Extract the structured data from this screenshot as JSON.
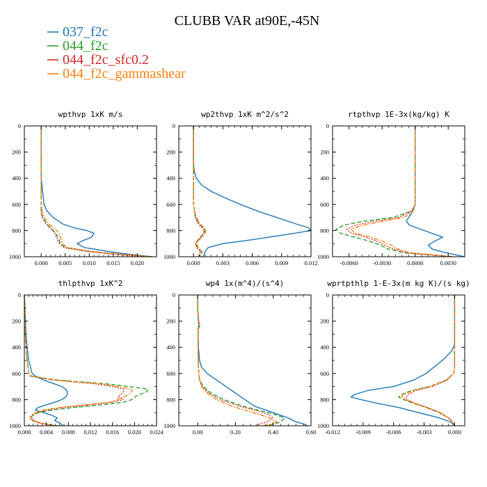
{
  "figure": {
    "title": "CLUBB VAR at90E,-45N"
  },
  "legend": {
    "placement": "top-left",
    "entries": [
      {
        "label": "037_f2c",
        "color": "#1f77b4",
        "dash": "solid"
      },
      {
        "label": "044_f2c",
        "color": "#2ca02c",
        "dash": "dashed"
      },
      {
        "label": "044_f2c_sfc0.2",
        "color": "#d62728",
        "dash": "dotted"
      },
      {
        "label": "044_f2c_gammashear",
        "color": "#ff7f0e",
        "dash": "dashdot"
      }
    ]
  },
  "chart_data": [
    {
      "type": "line",
      "title": "wpthvp  1xK m/s",
      "xlim": [
        -0.0035,
        0.024
      ],
      "ylim": [
        1000,
        0
      ],
      "xticks": [
        0.0,
        0.005,
        0.01,
        0.015,
        0.02
      ],
      "xtick_labels": [
        "0.000",
        "0.005",
        "0.010",
        "0.015",
        "0.020"
      ],
      "yticks": [
        0,
        200,
        400,
        600,
        800,
        1000
      ],
      "ytick_labels": [
        "0",
        "200",
        "400",
        "600",
        "800",
        "1000"
      ],
      "y": [
        0,
        100,
        200,
        300,
        400,
        500,
        600,
        650,
        700,
        750,
        780,
        800,
        820,
        850,
        880,
        900,
        930,
        960,
        980,
        1000
      ],
      "series": [
        {
          "name": "037_f2c",
          "values": [
            0,
            0,
            0,
            0,
            0,
            0.0003,
            0.0006,
            0.0012,
            0.0025,
            0.0045,
            0.007,
            0.0095,
            0.011,
            0.0105,
            0.0085,
            0.0075,
            0.009,
            0.014,
            0.018,
            0.023
          ]
        },
        {
          "name": "044_f2c",
          "values": [
            0,
            0,
            0,
            0,
            0,
            0,
            0,
            0,
            0.0003,
            0.0012,
            0.002,
            0.0025,
            0.003,
            0.0035,
            0.0038,
            0.004,
            0.005,
            0.01,
            0.016,
            0.023
          ]
        },
        {
          "name": "044_f2c_sfc0.2",
          "values": [
            0,
            0,
            0,
            0,
            0,
            0,
            0,
            0,
            0.0002,
            0.001,
            0.0018,
            0.0024,
            0.0028,
            0.0032,
            0.0035,
            0.0038,
            0.0048,
            0.0095,
            0.015,
            0.021
          ]
        },
        {
          "name": "044_f2c_gammashear",
          "values": [
            0,
            0,
            0,
            0,
            0,
            0,
            0,
            0.0002,
            0.0006,
            0.0016,
            0.0026,
            0.0032,
            0.0038,
            0.004,
            0.0042,
            0.0044,
            0.0055,
            0.0105,
            0.0165,
            0.023
          ]
        }
      ]
    },
    {
      "type": "line",
      "title": "wp2thvp  1xK m^2/s^2",
      "xlim": [
        -0.0015,
        0.012
      ],
      "ylim": [
        1000,
        0
      ],
      "xticks": [
        0.0,
        0.003,
        0.006,
        0.009,
        0.012
      ],
      "xtick_labels": [
        "0.000",
        "0.003",
        "0.006",
        "0.009",
        "0.012"
      ],
      "yticks": [
        0,
        200,
        400,
        600,
        800,
        1000
      ],
      "ytick_labels": [
        "0",
        "200",
        "400",
        "600",
        "800",
        "1000"
      ],
      "y": [
        0,
        100,
        200,
        300,
        350,
        400,
        450,
        500,
        550,
        600,
        650,
        700,
        750,
        780,
        800,
        830,
        870,
        900,
        930,
        960,
        1000
      ],
      "series": [
        {
          "name": "037_f2c",
          "values": [
            0,
            0,
            0,
            0,
            0.0001,
            0.0003,
            0.0008,
            0.0018,
            0.0032,
            0.0048,
            0.0065,
            0.0085,
            0.0105,
            0.0118,
            0.012,
            0.0095,
            0.006,
            0.003,
            0.0015,
            0.0012,
            0.001
          ]
        },
        {
          "name": "044_f2c",
          "values": [
            0,
            0,
            0,
            0,
            0,
            0,
            0,
            0,
            0,
            0,
            0.0001,
            0.0002,
            0.0006,
            0.001,
            0.0012,
            0.001,
            0.0005,
            0.0002,
            0.0004,
            0.0008,
            0.0006
          ]
        },
        {
          "name": "044_f2c_sfc0.2",
          "values": [
            0,
            0,
            0,
            0,
            0,
            0,
            0,
            0,
            0,
            0,
            0.0001,
            0.0002,
            0.0005,
            0.0009,
            0.0011,
            0.0009,
            0.0005,
            0.0002,
            0.0003,
            0.0007,
            0.0005
          ]
        },
        {
          "name": "044_f2c_gammashear",
          "values": [
            0,
            0,
            0,
            0,
            0,
            0,
            0,
            0,
            0,
            0,
            0.0001,
            0.0003,
            0.0007,
            0.0011,
            0.0013,
            0.0011,
            0.0006,
            0.0003,
            0.0005,
            0.0009,
            0.0007
          ]
        }
      ]
    },
    {
      "type": "line",
      "title": "rtpthvp  1E-3x(kg/kg) K",
      "xlim": [
        -0.0075,
        0.0045
      ],
      "ylim": [
        1000,
        0
      ],
      "xticks": [
        -0.006,
        -0.003,
        0.0,
        0.003
      ],
      "xtick_labels": [
        "-0.0060",
        "-0.0030",
        "0.0000",
        "0.0030"
      ],
      "yticks": [
        0,
        200,
        400,
        600,
        800,
        1000
      ],
      "ytick_labels": [
        "0",
        "200",
        "400",
        "600",
        "800",
        "1000"
      ],
      "y": [
        0,
        200,
        400,
        500,
        600,
        650,
        700,
        730,
        760,
        790,
        820,
        850,
        880,
        910,
        940,
        970,
        1000
      ],
      "series": [
        {
          "name": "037_f2c",
          "values": [
            0,
            0,
            0,
            0,
            0,
            -0.0002,
            -0.0006,
            -0.0008,
            -0.0005,
            0.0005,
            0.0015,
            0.0025,
            0.0018,
            0.0012,
            0.0015,
            0.0028,
            0.0045
          ]
        },
        {
          "name": "044_f2c",
          "values": [
            0,
            0,
            0,
            0,
            0,
            -0.0003,
            -0.002,
            -0.0048,
            -0.0065,
            -0.0072,
            -0.0068,
            -0.0055,
            -0.0042,
            -0.0032,
            -0.0025,
            -0.001,
            0.0035
          ]
        },
        {
          "name": "044_f2c_sfc0.2",
          "values": [
            0,
            0,
            0,
            0,
            0,
            -0.0003,
            -0.0015,
            -0.0038,
            -0.0055,
            -0.0062,
            -0.0058,
            -0.0045,
            -0.0035,
            -0.0028,
            -0.002,
            -0.0008,
            0.0033
          ]
        },
        {
          "name": "044_f2c_gammashear",
          "values": [
            0,
            0,
            0,
            0,
            0,
            -0.0002,
            -0.001,
            -0.003,
            -0.0048,
            -0.0058,
            -0.0055,
            -0.004,
            -0.003,
            -0.0022,
            -0.0016,
            -0.0005,
            0.0034
          ]
        }
      ]
    },
    {
      "type": "line",
      "title": "thlpthvp  1xK^2",
      "xlim": [
        0.0,
        0.024
      ],
      "ylim": [
        1000,
        0
      ],
      "xticks": [
        0.0,
        0.004,
        0.008,
        0.012,
        0.016,
        0.02,
        0.024
      ],
      "xtick_labels": [
        "0.000",
        "0.004",
        "0.008",
        "0.012",
        "0.016",
        "0.020",
        "0.024"
      ],
      "yticks": [
        0,
        200,
        400,
        600,
        800,
        1000
      ],
      "ytick_labels": [
        "0",
        "200",
        "400",
        "600",
        "800",
        "1000"
      ],
      "y": [
        0,
        100,
        200,
        300,
        400,
        500,
        600,
        620,
        650,
        680,
        700,
        720,
        740,
        760,
        780,
        800,
        820,
        840,
        860,
        880,
        900,
        920,
        940,
        960,
        980,
        1000
      ],
      "series": [
        {
          "name": "037_f2c",
          "values": [
            0,
            0.0001,
            0.0002,
            0.0003,
            0.0005,
            0.0008,
            0.0014,
            0.002,
            0.0035,
            0.0055,
            0.0068,
            0.0075,
            0.0078,
            0.0078,
            0.0075,
            0.0068,
            0.0055,
            0.004,
            0.0025,
            0.002,
            0.0035,
            0.005,
            0.006,
            0.0055,
            0.0065,
            0.007
          ]
        },
        {
          "name": "044_f2c",
          "values": [
            0,
            0.0001,
            0.0001,
            0.0002,
            0.0003,
            0.0005,
            0.0008,
            0.0012,
            0.006,
            0.015,
            0.019,
            0.0225,
            0.0222,
            0.021,
            0.02,
            0.0195,
            0.018,
            0.014,
            0.009,
            0.005,
            0.0025,
            0.0015,
            0.0012,
            0.0015,
            0.003,
            0.006
          ]
        },
        {
          "name": "044_f2c_sfc0.2",
          "values": [
            0,
            0.0001,
            0.0001,
            0.0002,
            0.0003,
            0.0005,
            0.0008,
            0.001,
            0.005,
            0.013,
            0.016,
            0.018,
            0.018,
            0.0175,
            0.017,
            0.018,
            0.016,
            0.012,
            0.007,
            0.004,
            0.0022,
            0.0014,
            0.0012,
            0.0018,
            0.003,
            0.0055
          ]
        },
        {
          "name": "044_f2c_gammashear",
          "values": [
            0,
            0.0001,
            0.0001,
            0.0002,
            0.0003,
            0.0005,
            0.0008,
            0.0011,
            0.0055,
            0.014,
            0.017,
            0.0195,
            0.0195,
            0.019,
            0.018,
            0.017,
            0.0155,
            0.011,
            0.0065,
            0.0035,
            0.002,
            0.0012,
            0.001,
            0.0014,
            0.0028,
            0.0055
          ]
        }
      ]
    },
    {
      "type": "line",
      "title": "wp4  1x(m^4)/(s^4)",
      "xlim": [
        -0.1,
        0.6
      ],
      "ylim": [
        1000,
        0
      ],
      "xticks": [
        0.0,
        0.2,
        0.4,
        0.6
      ],
      "xtick_labels": [
        "0.00",
        "0.20",
        "0.40",
        "0.60"
      ],
      "yticks": [
        0,
        200,
        400,
        600,
        800,
        1000
      ],
      "ytick_labels": [
        "0",
        "200",
        "400",
        "600",
        "800",
        "1000"
      ],
      "y": [
        0,
        100,
        200,
        230,
        260,
        300,
        400,
        500,
        550,
        600,
        650,
        700,
        750,
        800,
        850,
        880,
        910,
        940,
        970,
        990,
        1000
      ],
      "series": [
        {
          "name": "037_f2c",
          "values": [
            0,
            0,
            0.003,
            0.006,
            0.003,
            0.002,
            0.004,
            0.01,
            0.02,
            0.05,
            0.1,
            0.15,
            0.2,
            0.25,
            0.3,
            0.36,
            0.42,
            0.48,
            0.52,
            0.57,
            0.58
          ]
        },
        {
          "name": "044_f2c",
          "values": [
            0,
            0,
            0.005,
            0.012,
            0.004,
            0.002,
            0.002,
            0.003,
            0.004,
            0.006,
            0.01,
            0.03,
            0.07,
            0.14,
            0.24,
            0.32,
            0.4,
            0.46,
            0.44,
            0.4,
            0.35
          ]
        },
        {
          "name": "044_f2c_sfc0.2",
          "values": [
            0,
            0,
            0.005,
            0.013,
            0.004,
            0.002,
            0.002,
            0.003,
            0.004,
            0.006,
            0.01,
            0.025,
            0.06,
            0.12,
            0.22,
            0.3,
            0.37,
            0.4,
            0.37,
            0.32,
            0.3
          ]
        },
        {
          "name": "044_f2c_gammashear",
          "values": [
            0,
            0,
            0.005,
            0.011,
            0.004,
            0.002,
            0.002,
            0.003,
            0.004,
            0.006,
            0.01,
            0.02,
            0.05,
            0.1,
            0.18,
            0.25,
            0.32,
            0.38,
            0.42,
            0.38,
            0.36
          ]
        }
      ]
    },
    {
      "type": "line",
      "title": "wprtpthlp  1-E-3x(m kg K)/(s kg)",
      "xlim": [
        -0.012,
        0.001
      ],
      "ylim": [
        1000,
        0
      ],
      "xticks": [
        -0.012,
        -0.009,
        -0.006,
        -0.003,
        0.0
      ],
      "xtick_labels": [
        "-0.012",
        "-0.009",
        "-0.006",
        "-0.003",
        "0.000"
      ],
      "yticks": [
        0,
        200,
        400,
        600,
        800,
        1000
      ],
      "ytick_labels": [
        "0",
        "200",
        "400",
        "600",
        "800",
        "1000"
      ],
      "y": [
        0,
        100,
        200,
        300,
        380,
        430,
        500,
        550,
        600,
        650,
        700,
        730,
        760,
        780,
        800,
        830,
        860,
        900,
        940,
        970,
        1000
      ],
      "series": [
        {
          "name": "037_f2c",
          "values": [
            0,
            0,
            0,
            0,
            0,
            -0.0003,
            -0.0012,
            -0.002,
            -0.0028,
            -0.004,
            -0.006,
            -0.0085,
            -0.0098,
            -0.0102,
            -0.0092,
            -0.0075,
            -0.0055,
            -0.0035,
            -0.0015,
            -0.0004,
            0
          ]
        },
        {
          "name": "044_f2c",
          "values": [
            0,
            0,
            0,
            0,
            0,
            0,
            0,
            0,
            -0.0001,
            -0.0008,
            -0.0025,
            -0.0042,
            -0.0052,
            -0.0055,
            -0.005,
            -0.004,
            -0.0028,
            -0.0015,
            -0.0006,
            -0.0002,
            0
          ]
        },
        {
          "name": "044_f2c_sfc0.2",
          "values": [
            0,
            0,
            0,
            0,
            0,
            0,
            0,
            0,
            -0.0001,
            -0.0007,
            -0.0022,
            -0.0038,
            -0.0045,
            -0.0048,
            -0.0047,
            -0.0038,
            -0.0027,
            -0.0014,
            -0.0006,
            -0.0002,
            0
          ]
        },
        {
          "name": "044_f2c_gammashear",
          "values": [
            0,
            0,
            0,
            0,
            0,
            0,
            0,
            0,
            -0.0001,
            -0.0008,
            -0.0024,
            -0.004,
            -0.005,
            -0.0052,
            -0.0048,
            -0.0039,
            -0.0027,
            -0.0014,
            -0.0006,
            -0.0002,
            0
          ]
        }
      ]
    }
  ]
}
